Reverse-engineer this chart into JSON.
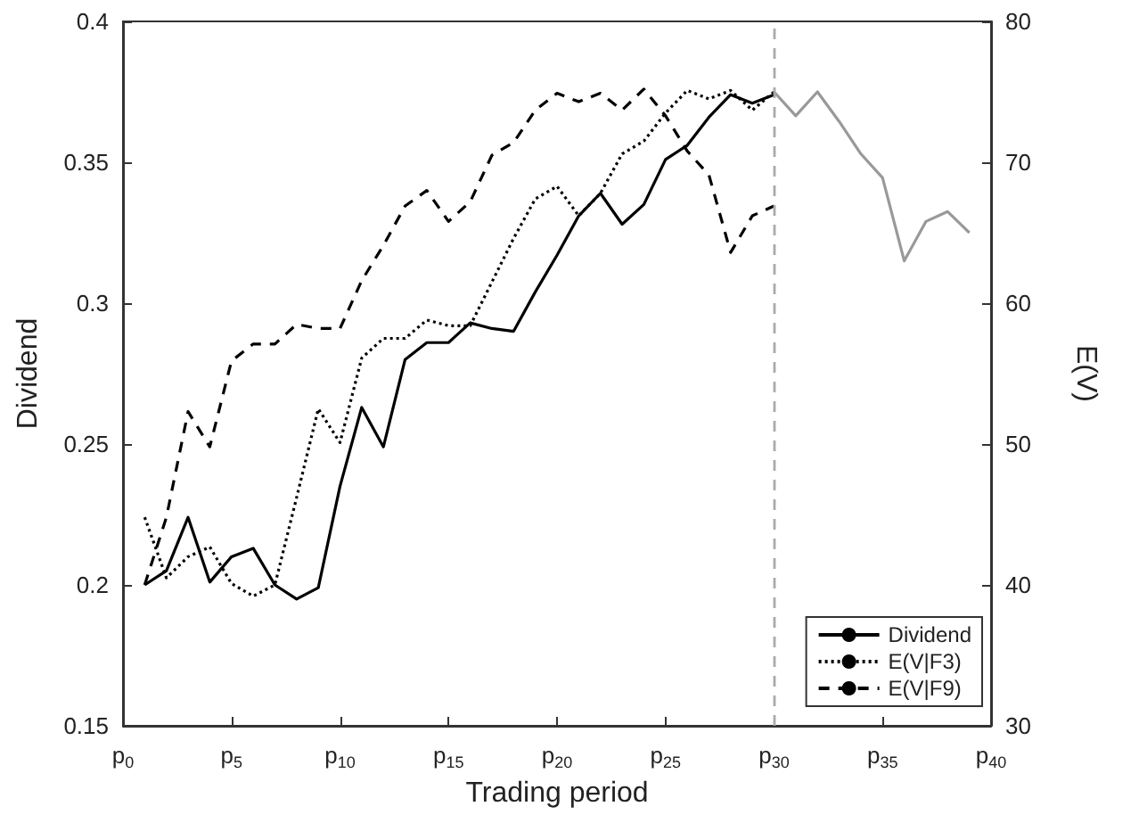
{
  "chart_data": {
    "type": "line",
    "xlabel": "Trading period",
    "ylabel": "Dividend",
    "y2label": "E(V)",
    "x": [
      1,
      2,
      3,
      4,
      5,
      6,
      7,
      8,
      9,
      10,
      11,
      12,
      13,
      14,
      15,
      16,
      17,
      18,
      19,
      20,
      21,
      22,
      23,
      24,
      25,
      26,
      27,
      28,
      29,
      30
    ],
    "series": [
      {
        "name": "Dividend",
        "color": "#000000",
        "line_style": "solid",
        "values": [
          0.2,
          0.205,
          0.224,
          0.201,
          0.21,
          0.213,
          0.2,
          0.195,
          0.199,
          0.235,
          0.263,
          0.249,
          0.28,
          0.286,
          0.286,
          0.293,
          0.291,
          0.29,
          0.304,
          0.317,
          0.331,
          0.339,
          0.328,
          0.335,
          0.351,
          0.356,
          0.366,
          0.374,
          0.371,
          0.374
        ]
      },
      {
        "name": "E(V|F3)",
        "color": "#000000",
        "line_style": "dotted",
        "axis": "y2",
        "values": [
          44.8,
          40.5,
          42.0,
          42.7,
          40.1,
          39.2,
          40.0,
          46.2,
          52.5,
          50.1,
          56.1,
          57.5,
          57.5,
          58.8,
          58.4,
          58.4,
          61.5,
          64.6,
          67.4,
          68.3,
          66.2,
          67.8,
          70.6,
          71.5,
          73.5,
          75.1,
          74.5,
          75.1,
          73.7,
          75.0
        ]
      },
      {
        "name": "E(V|F9)",
        "color": "#000000",
        "line_style": "dashed",
        "axis": "y2",
        "values": [
          40.0,
          44.8,
          52.3,
          49.8,
          55.9,
          57.1,
          57.1,
          58.5,
          58.2,
          58.2,
          61.6,
          64.1,
          66.9,
          68.0,
          65.8,
          67.2,
          70.5,
          71.4,
          73.7,
          74.9,
          74.3,
          74.9,
          73.7,
          75.2,
          73.3,
          70.8,
          69.1,
          63.6,
          66.2,
          66.9
        ]
      },
      {
        "color": "#999999",
        "line_style": "solid",
        "axis": "y2",
        "x": [
          30,
          31,
          32,
          33,
          34,
          35,
          36,
          37,
          38,
          39
        ],
        "values": [
          75.0,
          73.3,
          75.0,
          72.9,
          70.6,
          68.9,
          63.0,
          65.8,
          66.5,
          65.0
        ]
      }
    ],
    "xlim": [
      0,
      40
    ],
    "xticks": [
      {
        "value": 0,
        "label": "p$_{0}$"
      },
      {
        "value": 5,
        "label": "p$_{5}$"
      },
      {
        "value": 10,
        "label": "p$_{10}$"
      },
      {
        "value": 15,
        "label": "p$_{15}$"
      },
      {
        "value": 20,
        "label": "p$_{20}$"
      },
      {
        "value": 25,
        "label": "p$_{25}$"
      },
      {
        "value": 30,
        "label": "p$_{30}$"
      },
      {
        "value": 35,
        "label": "p$_{35}$"
      },
      {
        "value": 40,
        "label": "p$_{40}$"
      }
    ],
    "ylim": [
      0.15,
      0.4
    ],
    "yticks": [
      0.15,
      0.2,
      0.25,
      0.3,
      0.35,
      0.4
    ],
    "y2lim": [
      30,
      80
    ],
    "y2ticks": [
      30,
      40,
      50,
      60,
      70,
      80
    ],
    "ref_lines": [
      {
        "axis": "x",
        "value": 30,
        "color": "#aaaaaa",
        "line_style": "dashed"
      }
    ],
    "legend": "bottom right",
    "grid": false,
    "marker": "none"
  }
}
